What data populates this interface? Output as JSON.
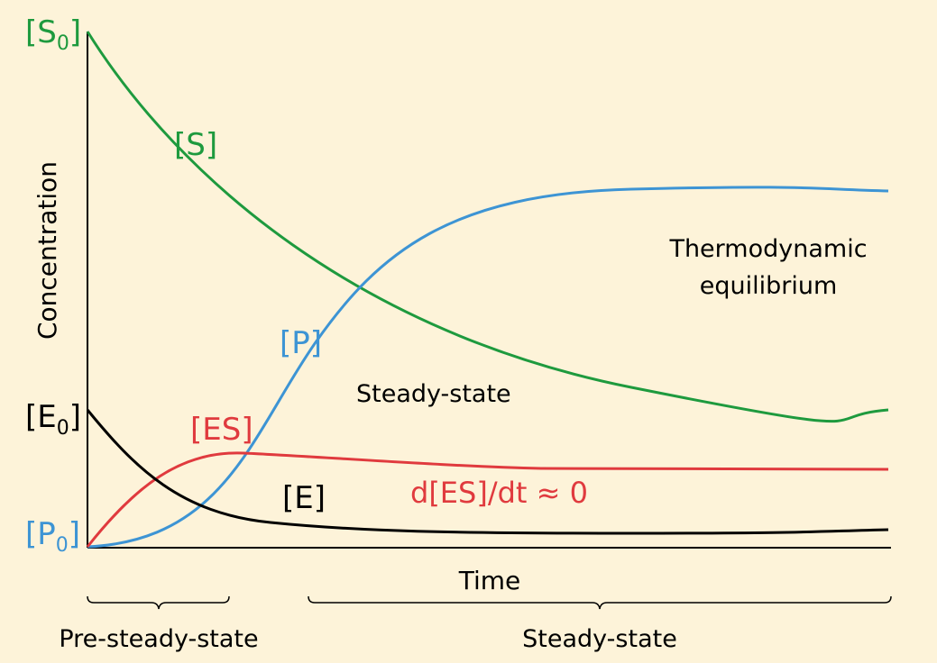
{
  "y_axis": {
    "title": "Concentration",
    "marks": [
      {
        "text": "[S",
        "subscript": "0",
        "suffix": "]"
      },
      {
        "text": "[E",
        "subscript": "0",
        "suffix": "]"
      },
      {
        "text": "[P",
        "subscript": "0",
        "suffix": "]"
      }
    ]
  },
  "x_axis": {
    "title": "Time"
  },
  "curve_labels": {
    "S": "[S]",
    "P": "[P]",
    "ES": "[ES]",
    "E": "[E]"
  },
  "annotations": {
    "es_rate": "d[ES]/dt ≈ 0",
    "steady_state": "Steady-state",
    "equilibrium": [
      "Thermodynamic",
      "equilibrium"
    ]
  },
  "phases": {
    "pre": "Pre-steady-state",
    "steady": "Steady-state"
  }
}
